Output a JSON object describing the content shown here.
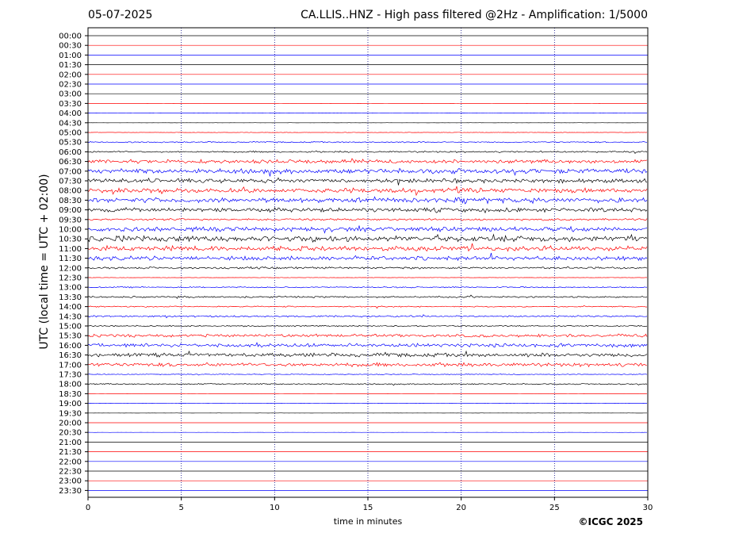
{
  "header": {
    "date": "05-07-2025",
    "title": "CA.LLIS..HNZ - High pass filtered @2Hz - Amplification: 1/5000"
  },
  "footer": {
    "copyright": "©ICGC 2025"
  },
  "chart_data": {
    "type": "line",
    "title": "CA.LLIS..HNZ - High pass filtered @2Hz - Amplification: 1/5000",
    "xlabel": "time in minutes",
    "ylabel": "UTC (local time = UTC + 02:00)",
    "xlim": [
      0,
      30
    ],
    "x_ticks": [
      "0",
      "5",
      "10",
      "15",
      "20",
      "25",
      "30"
    ],
    "vertical_gridlines_at": [
      5,
      10,
      15,
      20,
      25
    ],
    "grid": true,
    "series_colors": [
      "#ff0000",
      "#0000ff",
      "#000000"
    ],
    "rows": [
      {
        "label": "00:00",
        "color": "#000000",
        "activity": 0.0
      },
      {
        "label": "00:30",
        "color": "#ff0000",
        "activity": 0.0
      },
      {
        "label": "01:00",
        "color": "#0000ff",
        "activity": 0.0
      },
      {
        "label": "01:30",
        "color": "#000000",
        "activity": 0.0
      },
      {
        "label": "02:00",
        "color": "#ff0000",
        "activity": 0.0
      },
      {
        "label": "02:30",
        "color": "#0000ff",
        "activity": 0.0
      },
      {
        "label": "03:00",
        "color": "#000000",
        "activity": 0.0
      },
      {
        "label": "03:30",
        "color": "#ff0000",
        "activity": 0.02
      },
      {
        "label": "04:00",
        "color": "#0000ff",
        "activity": 0.02
      },
      {
        "label": "04:30",
        "color": "#000000",
        "activity": 0.02
      },
      {
        "label": "05:00",
        "color": "#ff0000",
        "activity": 0.05
      },
      {
        "label": "05:30",
        "color": "#0000ff",
        "activity": 0.15
      },
      {
        "label": "06:00",
        "color": "#000000",
        "activity": 0.2
      },
      {
        "label": "06:30",
        "color": "#ff0000",
        "activity": 0.45
      },
      {
        "label": "07:00",
        "color": "#0000ff",
        "activity": 0.6
      },
      {
        "label": "07:30",
        "color": "#000000",
        "activity": 0.5
      },
      {
        "label": "08:00",
        "color": "#ff0000",
        "activity": 0.55
      },
      {
        "label": "08:30",
        "color": "#0000ff",
        "activity": 0.6
      },
      {
        "label": "09:00",
        "color": "#000000",
        "activity": 0.5
      },
      {
        "label": "09:30",
        "color": "#ff0000",
        "activity": 0.25
      },
      {
        "label": "10:00",
        "color": "#0000ff",
        "activity": 0.55
      },
      {
        "label": "10:30",
        "color": "#000000",
        "activity": 0.7
      },
      {
        "label": "11:00",
        "color": "#ff0000",
        "activity": 0.6
      },
      {
        "label": "11:30",
        "color": "#0000ff",
        "activity": 0.5
      },
      {
        "label": "12:00",
        "color": "#000000",
        "activity": 0.25
      },
      {
        "label": "12:30",
        "color": "#ff0000",
        "activity": 0.05
      },
      {
        "label": "13:00",
        "color": "#0000ff",
        "activity": 0.15
      },
      {
        "label": "13:30",
        "color": "#000000",
        "activity": 0.2
      },
      {
        "label": "14:00",
        "color": "#ff0000",
        "activity": 0.15
      },
      {
        "label": "14:30",
        "color": "#0000ff",
        "activity": 0.2
      },
      {
        "label": "15:00",
        "color": "#000000",
        "activity": 0.15
      },
      {
        "label": "15:30",
        "color": "#ff0000",
        "activity": 0.35
      },
      {
        "label": "16:00",
        "color": "#0000ff",
        "activity": 0.45
      },
      {
        "label": "16:30",
        "color": "#000000",
        "activity": 0.45
      },
      {
        "label": "17:00",
        "color": "#ff0000",
        "activity": 0.45
      },
      {
        "label": "17:30",
        "color": "#0000ff",
        "activity": 0.1
      },
      {
        "label": "18:00",
        "color": "#000000",
        "activity": 0.15
      },
      {
        "label": "18:30",
        "color": "#ff0000",
        "activity": 0.02
      },
      {
        "label": "19:00",
        "color": "#0000ff",
        "activity": 0.02
      },
      {
        "label": "19:30",
        "color": "#000000",
        "activity": 0.02
      },
      {
        "label": "20:00",
        "color": "#ff0000",
        "activity": 0.0
      },
      {
        "label": "20:30",
        "color": "#0000ff",
        "activity": 0.02
      },
      {
        "label": "21:00",
        "color": "#000000",
        "activity": 0.0
      },
      {
        "label": "21:30",
        "color": "#ff0000",
        "activity": 0.0
      },
      {
        "label": "22:00",
        "color": "#0000ff",
        "activity": 0.0
      },
      {
        "label": "22:30",
        "color": "#000000",
        "activity": 0.0
      },
      {
        "label": "23:00",
        "color": "#ff0000",
        "activity": 0.0
      },
      {
        "label": "23:30",
        "color": "#0000ff",
        "activity": 0.0
      }
    ]
  }
}
